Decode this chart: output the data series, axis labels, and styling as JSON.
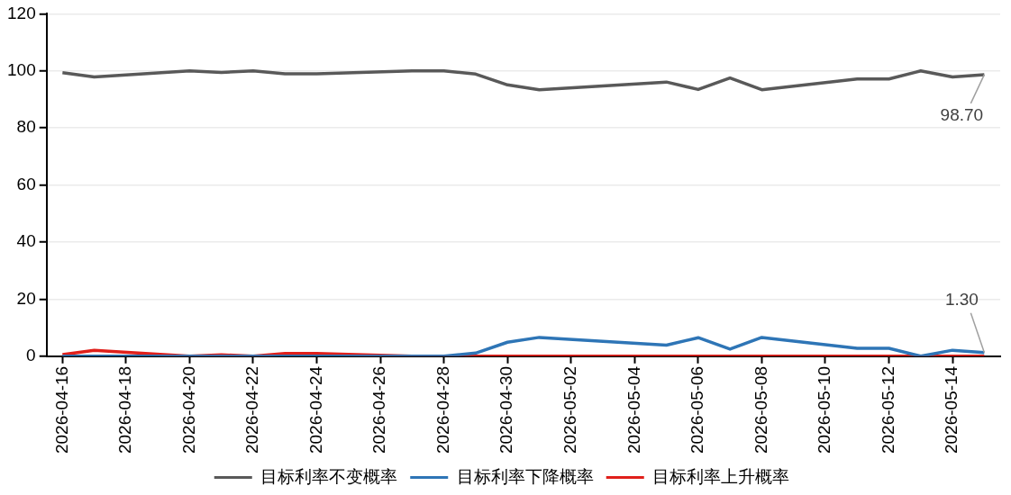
{
  "chart_data": {
    "type": "line",
    "x": [
      "2026-04-16",
      "2026-04-17",
      "2026-04-20",
      "2026-04-21",
      "2026-04-22",
      "2026-04-23",
      "2026-04-24",
      "2026-04-27",
      "2026-04-28",
      "2026-04-29",
      "2026-04-30",
      "2026-05-01",
      "2026-05-05",
      "2026-05-06",
      "2026-05-07",
      "2026-05-08",
      "2026-05-11",
      "2026-05-12",
      "2026-05-13",
      "2026-05-14",
      "2026-05-15"
    ],
    "series": [
      {
        "name": "目标利率不变概率",
        "color": "#595959",
        "values": [
          99.4,
          97.9,
          100,
          99.5,
          100,
          99,
          99,
          100,
          100,
          98.9,
          95.1,
          93.4,
          96.1,
          93.5,
          97.5,
          93.4,
          97.2,
          97.2,
          100,
          97.9,
          98.7
        ]
      },
      {
        "name": "目标利率下降概率",
        "color": "#2e75b6",
        "values": [
          0,
          0,
          0,
          0,
          0,
          0,
          0,
          0,
          0,
          1.1,
          4.9,
          6.6,
          3.9,
          6.5,
          2.5,
          6.6,
          2.8,
          2.8,
          0,
          2.1,
          1.3
        ]
      },
      {
        "name": "目标利率上升概率",
        "color": "#e0201b",
        "values": [
          0.6,
          2.1,
          0,
          0.5,
          0,
          1,
          1,
          0,
          0,
          0,
          0,
          0,
          0,
          0,
          0,
          0,
          0,
          0,
          0,
          0,
          0
        ]
      }
    ],
    "xlim": [
      "2026-04-15T12:00",
      "2026-05-15T12:00"
    ],
    "xticks": [
      {
        "value": "2026-04-16",
        "label": "2026-04-16"
      },
      {
        "value": "2026-04-18",
        "label": "2026-04-18"
      },
      {
        "value": "2026-04-20",
        "label": "2026-04-20"
      },
      {
        "value": "2026-04-22",
        "label": "2026-04-22"
      },
      {
        "value": "2026-04-24",
        "label": "2026-04-24"
      },
      {
        "value": "2026-04-26",
        "label": "2026-04-26"
      },
      {
        "value": "2026-04-28",
        "label": "2026-04-28"
      },
      {
        "value": "2026-04-30",
        "label": "2026-04-30"
      },
      {
        "value": "2026-05-02",
        "label": "2026-05-02"
      },
      {
        "value": "2026-05-04",
        "label": "2026-05-04"
      },
      {
        "value": "2026-05-06",
        "label": "2026-05-06"
      },
      {
        "value": "2026-05-08",
        "label": "2026-05-08"
      },
      {
        "value": "2026-05-10",
        "label": "2026-05-10"
      },
      {
        "value": "2026-05-12",
        "label": "2026-05-12"
      },
      {
        "value": "2026-05-14",
        "label": "2026-05-14"
      }
    ],
    "ylim": [
      0,
      120
    ],
    "yticks": [
      0,
      20,
      40,
      60,
      80,
      100,
      120
    ],
    "grid": "y",
    "legend": "bottom",
    "marker": "none",
    "line_style": "solid",
    "annotations": [
      {
        "text": "98.70",
        "x": "2026-05-15",
        "y": 98.7
      },
      {
        "text": "1.30",
        "x": "2026-05-15",
        "y": 1.3
      }
    ]
  }
}
